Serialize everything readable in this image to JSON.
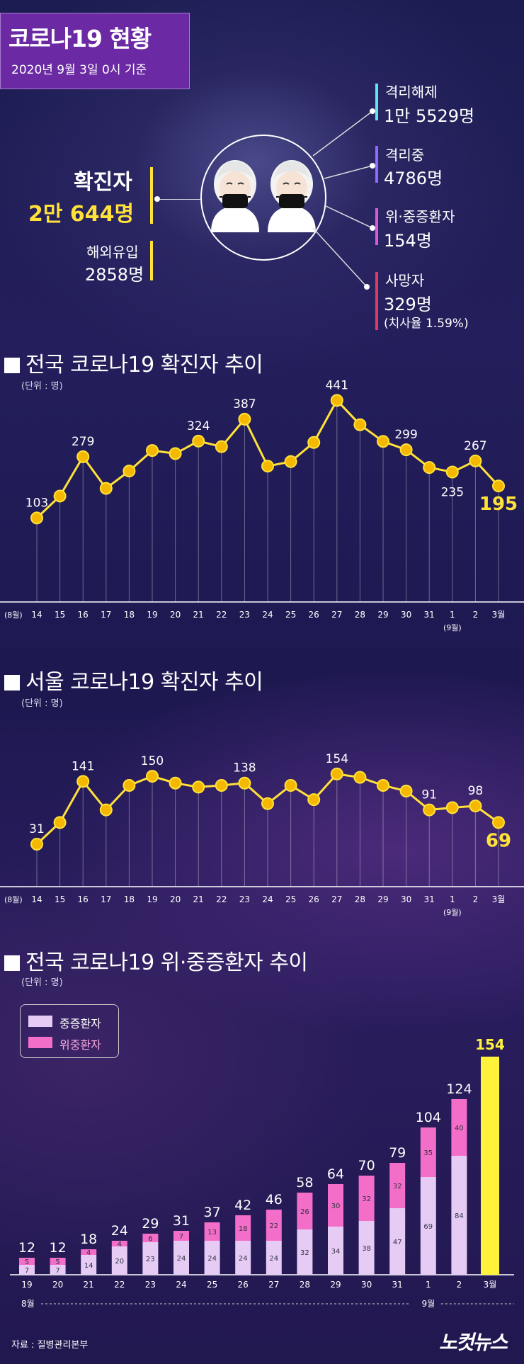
{
  "header": {
    "title": "코로나19 현황",
    "subtitle": "2020년 9월 3일 0시 기준"
  },
  "summary": {
    "confirmed_label": "확진자",
    "confirmed_value": "2만 644명",
    "imported_label": "해외유입",
    "imported_value": "2858명",
    "released_label": "격리해제",
    "released_value": "1만 5529명",
    "isolated_label": "격리중",
    "isolated_value": "4786명",
    "critical_label": "위·중증환자",
    "critical_value": "154명",
    "deaths_label": "사망자",
    "deaths_value": "329명",
    "fatality_note": "(치사율 1.59%)",
    "colors": {
      "released": "#5ee6f0",
      "isolated": "#8a6cff",
      "critical": "#d85ad8",
      "deaths": "#e23a5a",
      "highlight": "#ffe13a"
    },
    "icon": "masked-people-icon"
  },
  "chart_data": [
    {
      "type": "line",
      "title": "전국 코로나19 확진자 추이",
      "unit": "(단위 : 명)",
      "categories": [
        "14",
        "15",
        "16",
        "17",
        "18",
        "19",
        "20",
        "21",
        "22",
        "23",
        "24",
        "25",
        "26",
        "27",
        "28",
        "29",
        "30",
        "31",
        "1",
        "2",
        "3월"
      ],
      "values": [
        103,
        166,
        279,
        188,
        238,
        297,
        288,
        324,
        308,
        387,
        252,
        265,
        320,
        441,
        371,
        323,
        299,
        248,
        235,
        267,
        195
      ],
      "labeled_points": [
        0,
        2,
        7,
        9,
        13,
        16,
        18,
        19,
        20
      ],
      "month_labels": {
        "start": "(8월)",
        "sep": "(9월)"
      },
      "ylim": [
        0,
        460
      ]
    },
    {
      "type": "line",
      "title": "서울 코로나19 확진자 추이",
      "unit": "(단위 : 명)",
      "categories": [
        "14",
        "15",
        "16",
        "17",
        "18",
        "19",
        "20",
        "21",
        "22",
        "23",
        "24",
        "25",
        "26",
        "27",
        "28",
        "29",
        "30",
        "31",
        "1",
        "2",
        "3월"
      ],
      "values": [
        31,
        69,
        141,
        91,
        134,
        150,
        138,
        131,
        134,
        138,
        102,
        134,
        109,
        154,
        148,
        134,
        124,
        91,
        95,
        98,
        69
      ],
      "labeled_points": [
        0,
        2,
        5,
        9,
        13,
        17,
        19,
        20
      ],
      "month_labels": {
        "start": "(8월)",
        "sep": "(9월)"
      },
      "ylim": [
        0,
        160
      ]
    },
    {
      "type": "bar",
      "title": "전국 코로나19 위·중증환자 추이",
      "unit": "(단위 : 명)",
      "categories": [
        "19",
        "20",
        "21",
        "22",
        "23",
        "24",
        "25",
        "26",
        "27",
        "28",
        "29",
        "30",
        "31",
        "1",
        "2",
        "3월"
      ],
      "series": [
        {
          "name": "중증환자",
          "values": [
            7,
            7,
            14,
            20,
            23,
            24,
            24,
            24,
            24,
            32,
            34,
            38,
            47,
            69,
            84,
            null
          ]
        },
        {
          "name": "위중환자",
          "values": [
            5,
            5,
            4,
            4,
            6,
            7,
            13,
            18,
            22,
            26,
            30,
            32,
            32,
            35,
            40,
            null
          ]
        }
      ],
      "totals": [
        12,
        12,
        18,
        24,
        29,
        31,
        37,
        42,
        46,
        58,
        64,
        70,
        79,
        104,
        124,
        154
      ],
      "colors": {
        "severe": "#e6ccf5",
        "critical": "#f36ec8",
        "total": "#fff23a"
      },
      "month_labels": {
        "aug": "8월",
        "sep": "9월"
      },
      "ylim": [
        0,
        154
      ]
    }
  ],
  "footer": {
    "source": "자료 : 질병관리본부",
    "logo": "노컷뉴스"
  }
}
